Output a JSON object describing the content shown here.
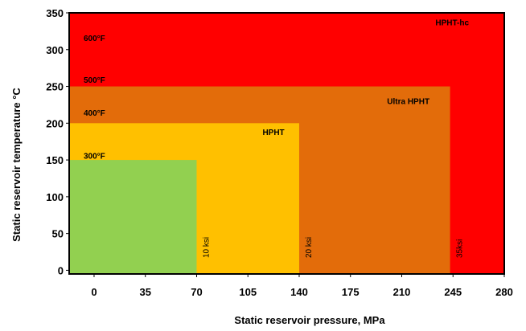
{
  "chart_data": {
    "type": "area",
    "title": "",
    "xlabel": "Static reservoir pressure, MPa",
    "ylabel": "Static reservoir temperature °C",
    "x_ticks": [
      0,
      35,
      70,
      105,
      140,
      175,
      210,
      245,
      280
    ],
    "y_ticks": [
      0,
      50,
      100,
      150,
      200,
      250,
      300,
      350
    ],
    "xlim": [
      -17,
      280
    ],
    "ylim": [
      -5,
      350
    ],
    "grid": false,
    "legend": "none",
    "regions": [
      {
        "name": "HPHT-hc",
        "x_max": 280,
        "y_max": 350,
        "color": "#ff0000",
        "label_x": 233,
        "label_y": 333
      },
      {
        "name": "Ultra HPHT",
        "x_max": 243,
        "y_max": 250,
        "color": "#e36c0a",
        "label_x": 200,
        "label_y": 226
      },
      {
        "name": "HPHT",
        "x_max": 140,
        "y_max": 200,
        "color": "#ffc000",
        "label_x": 115,
        "label_y": 184
      },
      {
        "name": "",
        "x_max": 70,
        "y_max": 150,
        "color": "#92d050",
        "label_x": 0,
        "label_y": 0
      }
    ],
    "temperature_labels": [
      {
        "text": "600°F",
        "y": 312
      },
      {
        "text": "500°F",
        "y": 255
      },
      {
        "text": "400°F",
        "y": 210
      },
      {
        "text": "300°F",
        "y": 152
      }
    ],
    "pressure_labels": [
      {
        "text": "10 ksi",
        "x": 70
      },
      {
        "text": "20 ksi",
        "x": 140
      },
      {
        "text": "35ksi",
        "x": 243
      }
    ]
  }
}
